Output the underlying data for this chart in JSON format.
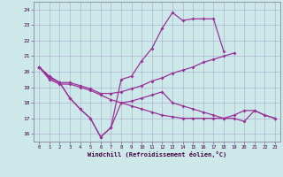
{
  "xlabel": "Windchill (Refroidissement éolien,°C)",
  "background_color": "#cce8e8",
  "grid_color": "#aaaacc",
  "line_color": "#993399",
  "x_ticks": [
    0,
    1,
    2,
    3,
    4,
    5,
    6,
    7,
    8,
    9,
    10,
    11,
    12,
    13,
    14,
    15,
    16,
    17,
    18,
    19,
    20,
    21,
    22,
    23
  ],
  "y_ticks": [
    16,
    17,
    18,
    19,
    20,
    21,
    22,
    23,
    24
  ],
  "xlim": [
    -0.5,
    23.5
  ],
  "ylim": [
    15.5,
    24.5
  ],
  "s1_x": [
    0,
    1,
    2,
    3,
    4,
    5,
    6,
    7,
    8,
    9,
    10,
    11,
    12,
    13,
    14,
    15,
    16,
    17,
    18
  ],
  "s1_y": [
    20.3,
    19.7,
    19.3,
    18.3,
    17.6,
    17.0,
    15.8,
    16.4,
    19.5,
    19.7,
    20.7,
    21.5,
    22.8,
    23.8,
    23.3,
    23.4,
    23.4,
    23.4,
    21.3
  ],
  "s2_x": [
    0,
    1,
    2,
    3,
    4,
    5,
    6,
    7,
    8,
    9,
    10,
    11,
    12,
    13,
    14,
    15,
    16,
    17,
    18,
    19
  ],
  "s2_y": [
    20.3,
    19.6,
    19.3,
    19.3,
    19.1,
    18.9,
    18.6,
    18.6,
    18.7,
    18.9,
    19.1,
    19.4,
    19.6,
    19.9,
    20.1,
    20.3,
    20.6,
    20.8,
    21.0,
    21.2
  ],
  "s3_x": [
    0,
    1,
    2,
    3,
    4,
    5,
    6,
    7,
    8,
    9,
    10,
    11,
    12,
    13,
    14,
    15,
    16,
    17,
    18,
    19,
    20,
    21,
    22,
    23
  ],
  "s3_y": [
    20.3,
    19.5,
    19.2,
    19.2,
    19.0,
    18.8,
    18.5,
    18.2,
    18.0,
    17.8,
    17.6,
    17.4,
    17.2,
    17.1,
    17.0,
    17.0,
    17.0,
    17.0,
    17.0,
    17.2,
    17.5,
    17.5,
    17.2,
    17.0
  ],
  "s4_x": [
    0,
    1,
    2,
    3,
    4,
    5,
    6,
    7,
    8,
    9,
    10,
    11,
    12,
    13,
    14,
    15,
    16,
    17,
    18,
    19,
    20,
    21,
    22,
    23
  ],
  "s4_y": [
    20.3,
    19.7,
    19.3,
    18.3,
    17.6,
    17.0,
    15.8,
    16.4,
    18.0,
    18.1,
    18.3,
    18.5,
    18.7,
    18.0,
    17.8,
    17.6,
    17.4,
    17.2,
    17.0,
    17.0,
    16.8,
    17.5,
    17.2,
    17.0
  ]
}
